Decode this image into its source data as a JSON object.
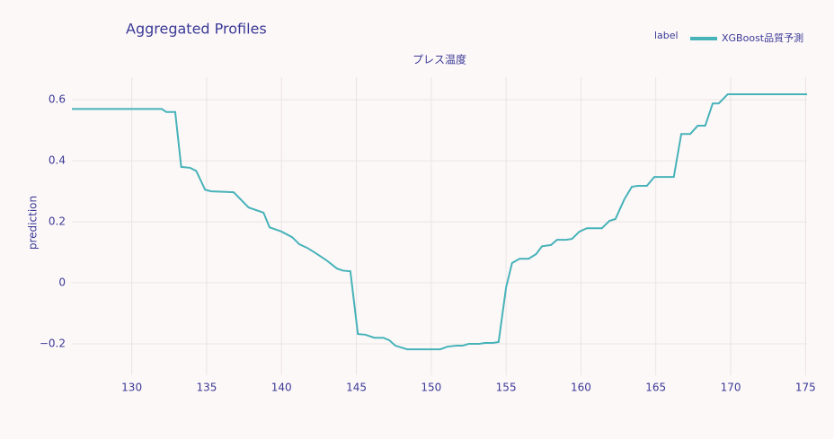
{
  "chart_data": {
    "type": "line",
    "title": "Aggregated Profiles",
    "x_label": "プレス温度",
    "y_label": "prediction",
    "legend_title": "label",
    "legend_position": "top-right",
    "grid": true,
    "xlim": [
      126,
      175.1
    ],
    "ylim": [
      -0.303,
      0.674
    ],
    "xticks": [
      130,
      135,
      140,
      145,
      150,
      155,
      160,
      165,
      170,
      175
    ],
    "yticks": [
      {
        "value": -0.2,
        "label": "−0.2"
      },
      0,
      0.2,
      0.4,
      0.6
    ],
    "x": [
      126,
      132,
      132.3,
      132.9,
      133.3,
      133.9,
      134.3,
      134.9,
      135.3,
      136.8,
      137.8,
      138.8,
      139.2,
      140,
      140.7,
      141.2,
      141.7,
      142.2,
      143,
      143.7,
      144.1,
      144.6,
      145.1,
      145.6,
      146.2,
      146.8,
      147.2,
      147.6,
      148.4,
      149.4,
      150.6,
      151.1,
      151.7,
      152.1,
      152.5,
      153.2,
      153.6,
      154.1,
      154.5,
      155,
      155.4,
      155.9,
      156.5,
      157,
      157.4,
      158,
      158.4,
      159,
      159.4,
      159.9,
      160.4,
      161.4,
      161.9,
      162.3,
      162.9,
      163.4,
      163.8,
      164.4,
      164.9,
      166.2,
      166.7,
      167.3,
      167.8,
      168.3,
      168.8,
      169.2,
      169.8,
      175.1
    ],
    "series": [
      {
        "name": "XGBoost品質予測",
        "color": "#46b3b9",
        "values": [
          0.57,
          0.57,
          0.56,
          0.56,
          0.38,
          0.377,
          0.367,
          0.305,
          0.3,
          0.297,
          0.247,
          0.23,
          0.182,
          0.168,
          0.15,
          0.126,
          0.115,
          0.1,
          0.074,
          0.047,
          0.04,
          0.038,
          -0.168,
          -0.17,
          -0.18,
          -0.18,
          -0.188,
          -0.206,
          -0.218,
          -0.218,
          -0.218,
          -0.209,
          -0.206,
          -0.206,
          -0.2,
          -0.2,
          -0.197,
          -0.197,
          -0.194,
          -0.015,
          0.065,
          0.079,
          0.079,
          0.094,
          0.12,
          0.124,
          0.141,
          0.141,
          0.144,
          0.168,
          0.179,
          0.179,
          0.203,
          0.209,
          0.274,
          0.315,
          0.318,
          0.318,
          0.347,
          0.347,
          0.488,
          0.488,
          0.515,
          0.515,
          0.588,
          0.588,
          0.618,
          0.618
        ]
      }
    ]
  }
}
